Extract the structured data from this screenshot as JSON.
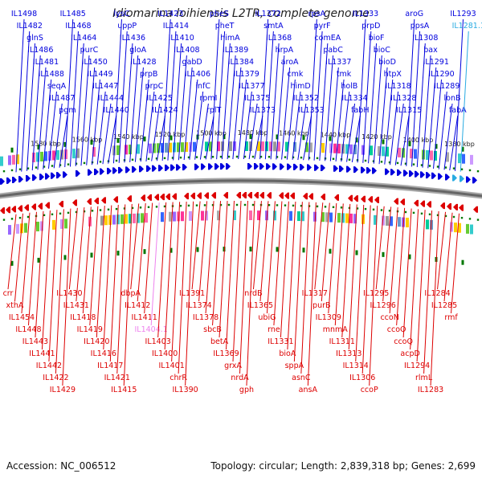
{
  "title": "Idiomarina loihiensis L2TR, complete genome",
  "accession": "Accession: NC_006512",
  "topology": "Topology: circular; Length: 2,839,318 bp; Genes: 2,699",
  "colors": {
    "forward": "#0000dd",
    "reverse": "#dd0000",
    "highlight_fwd": "#29abe2",
    "highlight_rev": "#ee82ee",
    "tick": "#007700"
  },
  "kbp_labels": [
    "1580 kbp",
    "1560 kbp",
    "1540 kbp",
    "1520 kbp",
    "1500 kbp",
    "1480 kbp",
    "1460 kbp",
    "1440 kbp",
    "1420 kbp",
    "1400 kbp",
    "1380 kbp"
  ],
  "top_labels": [
    {
      "text": "IL1498"
    },
    {
      "text": "IL1482"
    },
    {
      "text": "glnS"
    },
    {
      "text": "IL1486"
    },
    {
      "text": "IL1481"
    },
    {
      "text": "IL1488"
    },
    {
      "text": "seqA"
    },
    {
      "text": "IL1487"
    },
    {
      "text": "pgm"
    },
    {
      "text": "IL1485"
    },
    {
      "text": "IL1468"
    },
    {
      "text": "IL1464"
    },
    {
      "text": "purC"
    },
    {
      "text": "IL1450"
    },
    {
      "text": "IL1449"
    },
    {
      "text": "IL1447"
    },
    {
      "text": "IL1444"
    },
    {
      "text": "IL1440"
    },
    {
      "text": "lysC"
    },
    {
      "text": "uppP"
    },
    {
      "text": "IL1436"
    },
    {
      "text": "gloA"
    },
    {
      "text": "IL1428"
    },
    {
      "text": "prpB"
    },
    {
      "text": "prpC"
    },
    {
      "text": "IL1425"
    },
    {
      "text": "IL1424"
    },
    {
      "text": "IL1423"
    },
    {
      "text": "IL1414"
    },
    {
      "text": "IL1410"
    },
    {
      "text": "IL1408"
    },
    {
      "text": "gabD"
    },
    {
      "text": "IL1406"
    },
    {
      "text": "infC"
    },
    {
      "text": "rpmI"
    },
    {
      "text": "rplT"
    },
    {
      "text": "pheS"
    },
    {
      "text": "pheT"
    },
    {
      "text": "himA"
    },
    {
      "text": "IL1389"
    },
    {
      "text": "IL1384"
    },
    {
      "text": "IL1379"
    },
    {
      "text": "IL1377"
    },
    {
      "text": "IL1375"
    },
    {
      "text": "IL1373"
    },
    {
      "text": "IL1372"
    },
    {
      "text": "smtA"
    },
    {
      "text": "IL1368"
    },
    {
      "text": "hrpA"
    },
    {
      "text": "aroA"
    },
    {
      "text": "cmk"
    },
    {
      "text": "himD"
    },
    {
      "text": "IL1352"
    },
    {
      "text": "IL1353"
    },
    {
      "text": "rpsA"
    },
    {
      "text": "pyrF"
    },
    {
      "text": "comEA"
    },
    {
      "text": "pabC"
    },
    {
      "text": "IL1337"
    },
    {
      "text": "tmk"
    },
    {
      "text": "holB"
    },
    {
      "text": "IL1334"
    },
    {
      "text": "fabH"
    },
    {
      "text": "IL1333"
    },
    {
      "text": "prpD"
    },
    {
      "text": "bioF"
    },
    {
      "text": "bioC"
    },
    {
      "text": "bioD"
    },
    {
      "text": "htpX"
    },
    {
      "text": "IL1318"
    },
    {
      "text": "IL1328"
    },
    {
      "text": "IL1315"
    },
    {
      "text": "aroG"
    },
    {
      "text": "ppsA"
    },
    {
      "text": "IL1308"
    },
    {
      "text": "bax"
    },
    {
      "text": "IL1291"
    },
    {
      "text": "IL1290"
    },
    {
      "text": "IL1289"
    },
    {
      "text": "lonB"
    },
    {
      "text": "fabA"
    },
    {
      "text": "IL1293"
    },
    {
      "text": "IL1281.1"
    }
  ],
  "bottom_labels": [
    {
      "text": "crr"
    },
    {
      "text": "xthA"
    },
    {
      "text": "IL1454"
    },
    {
      "text": "IL1448"
    },
    {
      "text": "IL1443"
    },
    {
      "text": "IL1441"
    },
    {
      "text": "IL1442"
    },
    {
      "text": "IL1422"
    },
    {
      "text": "IL1429"
    },
    {
      "text": "IL1430"
    },
    {
      "text": "IL1431"
    },
    {
      "text": "IL1418"
    },
    {
      "text": "IL1419"
    },
    {
      "text": "IL1420"
    },
    {
      "text": "IL1416"
    },
    {
      "text": "IL1417"
    },
    {
      "text": "IL1421"
    },
    {
      "text": "IL1415"
    },
    {
      "text": "dbpA"
    },
    {
      "text": "IL1412"
    },
    {
      "text": "IL1411"
    },
    {
      "text": "IL1404.1"
    },
    {
      "text": "IL1403"
    },
    {
      "text": "IL1400"
    },
    {
      "text": "IL1401"
    },
    {
      "text": "chrR"
    },
    {
      "text": "IL1390"
    },
    {
      "text": "IL1391"
    },
    {
      "text": "IL1374"
    },
    {
      "text": "IL1378"
    },
    {
      "text": "sbcB"
    },
    {
      "text": "betA"
    },
    {
      "text": "IL1369"
    },
    {
      "text": "grxA"
    },
    {
      "text": "nrdA"
    },
    {
      "text": "gph"
    },
    {
      "text": "nrdB"
    },
    {
      "text": "IL1365"
    },
    {
      "text": "ubiG"
    },
    {
      "text": "rne"
    },
    {
      "text": "IL1331"
    },
    {
      "text": "bioA"
    },
    {
      "text": "sppA"
    },
    {
      "text": "asnC"
    },
    {
      "text": "ansA"
    },
    {
      "text": "IL1317"
    },
    {
      "text": "purB"
    },
    {
      "text": "IL1309"
    },
    {
      "text": "mnmA"
    },
    {
      "text": "IL1311"
    },
    {
      "text": "IL1313"
    },
    {
      "text": "IL1314"
    },
    {
      "text": "IL1306"
    },
    {
      "text": "ccoP"
    },
    {
      "text": "IL1295"
    },
    {
      "text": "IL1296"
    },
    {
      "text": "ccoN"
    },
    {
      "text": "ccoO"
    },
    {
      "text": "ccoQ"
    },
    {
      "text": "acpD"
    },
    {
      "text": "IL1294"
    },
    {
      "text": "rlmL"
    },
    {
      "text": "IL1283"
    },
    {
      "text": "IL1284"
    },
    {
      "text": "IL1285"
    },
    {
      "text": "rmf"
    }
  ]
}
